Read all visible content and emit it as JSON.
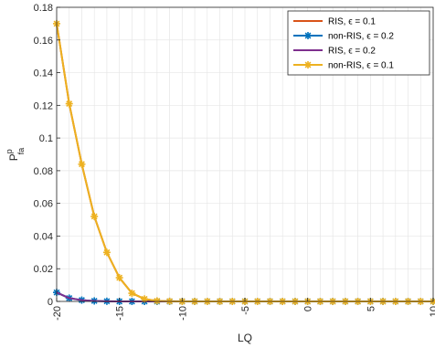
{
  "chart_data": {
    "type": "line",
    "xlabel": "LQ",
    "ylabel": "P",
    "ylabel_sup": "p",
    "ylabel_sub": "fa",
    "xlim": [
      -20,
      10
    ],
    "ylim": [
      0,
      0.18
    ],
    "xticks": [
      -20,
      -15,
      -10,
      -5,
      0,
      5,
      10
    ],
    "xtick_labels": [
      "-20",
      "-15",
      "-10",
      "-5",
      "0",
      "5",
      "10"
    ],
    "yticks": [
      0,
      0.02,
      0.04,
      0.06,
      0.08,
      0.1,
      0.12,
      0.14,
      0.16,
      0.18
    ],
    "ytick_labels": [
      "0",
      "0.02",
      "0.04",
      "0.06",
      "0.08",
      "0.1",
      "0.12",
      "0.14",
      "0.16",
      "0.18"
    ],
    "grid": true,
    "legend_position": "top-right",
    "x": [
      -20,
      -19,
      -18,
      -17,
      -16,
      -15,
      -14,
      -13,
      -12,
      -11,
      -10,
      -9,
      -8,
      -7,
      -6,
      -5,
      -4,
      -3,
      -2,
      -1,
      0,
      1,
      2,
      3,
      4,
      5,
      6,
      7,
      8,
      9,
      10
    ],
    "series": [
      {
        "name": "RIS, ϵ = 0.1",
        "color": "#D95319",
        "marker": "none",
        "values": [
          0.17,
          0.121,
          0.084,
          0.052,
          0.03,
          0.0145,
          0.005,
          0.0015,
          0.0003,
          0.0001,
          0,
          0,
          0,
          0,
          0,
          0,
          0,
          0,
          0,
          0,
          0,
          0,
          0,
          0,
          0,
          0,
          0,
          0,
          0,
          0,
          0
        ]
      },
      {
        "name": "non-RIS, ϵ = 0.2",
        "color": "#0072BD",
        "marker": "asterisk",
        "values": [
          0.0055,
          0.002,
          0.0008,
          0.0003,
          0.0001,
          0,
          0,
          0,
          0,
          0,
          0,
          0,
          0,
          0,
          0,
          0,
          0,
          0,
          0,
          0,
          0,
          0,
          0,
          0,
          0,
          0,
          0,
          0,
          0,
          0,
          0
        ]
      },
      {
        "name": "RIS, ϵ = 0.2",
        "color": "#7E2F8E",
        "marker": "none",
        "values": [
          0.0055,
          0.002,
          0.0008,
          0.0003,
          0.0001,
          0,
          0,
          0,
          0,
          0,
          0,
          0,
          0,
          0,
          0,
          0,
          0,
          0,
          0,
          0,
          0,
          0,
          0,
          0,
          0,
          0,
          0,
          0,
          0,
          0,
          0
        ]
      },
      {
        "name": "non-RIS, ϵ = 0.1",
        "color": "#EDB120",
        "marker": "asterisk",
        "values": [
          0.17,
          0.121,
          0.084,
          0.052,
          0.03,
          0.0145,
          0.005,
          0.0015,
          0.0003,
          0.0001,
          0,
          0,
          0,
          0,
          0,
          0,
          0,
          0,
          0,
          0,
          0,
          0,
          0,
          0,
          0,
          0,
          0,
          0,
          0,
          0,
          0
        ]
      }
    ]
  }
}
